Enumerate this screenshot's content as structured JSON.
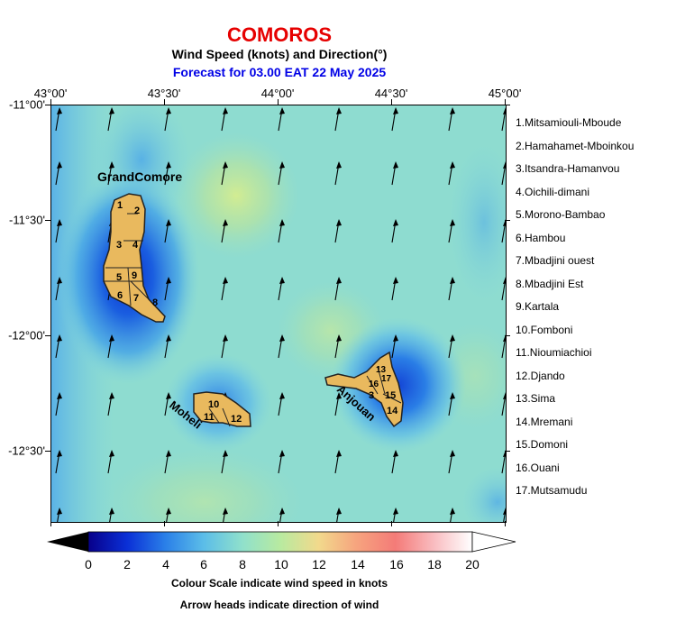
{
  "header": {
    "title": "COMOROS",
    "subtitle": "Wind Speed (knots) and Direction(°)",
    "forecast": "Forecast for  03.00 EAT 22 May 2025"
  },
  "colors": {
    "title": "#e60000",
    "subtitle": "#000000",
    "forecast": "#0000e6",
    "island_fill": "#e9b95e",
    "island_border": "#222222"
  },
  "axes": {
    "lon_labels": [
      "43°00'",
      "43°30'",
      "44°00'",
      "44°30'",
      "45°00'"
    ],
    "lat_labels": [
      "-11°00'",
      "-11°30'",
      "-12°00'",
      "-12°30'"
    ]
  },
  "map": {
    "extent": {
      "lon_min": 43.0,
      "lon_max": 45.0,
      "lat_min": -12.8,
      "lat_max": -11.0
    },
    "wind_direction_note": "arrows point roughly north (from south, slight east tilt)",
    "island_names": {
      "grand_comore": "GrandComore",
      "moheli": "Moheli",
      "anjouan": "Anjouan"
    },
    "region_numbers": {
      "grand_comore": [
        "1",
        "2",
        "3",
        "4",
        "5",
        "9",
        "6",
        "7",
        "8"
      ],
      "moheli": [
        "10",
        "11",
        "12"
      ],
      "anjouan": [
        "16",
        "17",
        "13",
        "3",
        "15",
        "14"
      ]
    }
  },
  "legend": {
    "items": [
      "1.Mitsamiouli-Mboude",
      "2.Hamahamet-Mboinkou",
      "3.Itsandra-Hamanvou",
      "4.Oichili-dimani",
      "5.Morono-Bambao",
      "6.Hambou",
      "7.Mbadjini ouest",
      "8.Mbadjini Est",
      "9.Kartala",
      "10.Fomboni",
      "11.Nioumiachioi",
      "12.Djando",
      "13.Sima",
      "14.Mremani",
      "15.Domoni",
      "16.Ouani",
      "17.Mutsamudu"
    ]
  },
  "colorbar": {
    "ticks": [
      "0",
      "2",
      "4",
      "6",
      "8",
      "10",
      "12",
      "14",
      "16",
      "18",
      "20"
    ],
    "unit": "knots",
    "caption": "Colour Scale indicate wind speed in knots",
    "caption2": "Arrow heads indicate direction of wind"
  }
}
